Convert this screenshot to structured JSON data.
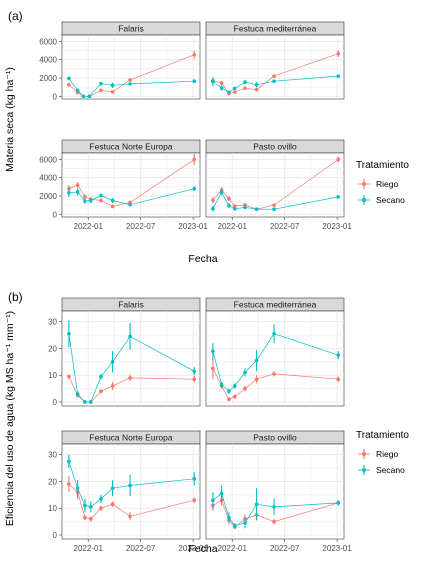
{
  "colors": {
    "riego": "#F8766D",
    "secano": "#00BFC4"
  },
  "chart_data": [
    {
      "type": "line",
      "label": "(a)",
      "xlabel": "Fecha",
      "ylabel": "Materia seca (kg ha⁻¹)",
      "ylim": [
        -300,
        6700
      ],
      "yticks": [
        0,
        2000,
        4000,
        6000
      ],
      "xticks": [
        "2022-01",
        "2022-07",
        "2023-01"
      ],
      "legend": {
        "title": "Tratamiento",
        "entries": [
          "Riego",
          "Secano"
        ],
        "placement": "right"
      },
      "panels": [
        {
          "title": "Falaris",
          "series": [
            {
              "name": "Riego",
              "x": [
                "2021-10-25",
                "2021-11-25",
                "2021-12-15",
                "2022-01-05",
                "2022-02-15",
                "2022-03-25",
                "2022-05-25",
                "2023-01-05"
              ],
              "y": [
                1250,
                420,
                0,
                0,
                650,
                480,
                1780,
                4550
              ],
              "err": [
                150,
                150,
                50,
                50,
                120,
                120,
                150,
                450
              ]
            },
            {
              "name": "Secano",
              "x": [
                "2021-10-25",
                "2021-11-25",
                "2021-12-15",
                "2022-01-05",
                "2022-02-15",
                "2022-03-25",
                "2022-05-25",
                "2023-01-05"
              ],
              "y": [
                1950,
                650,
                0,
                0,
                1380,
                1200,
                1350,
                1650
              ],
              "err": [
                150,
                150,
                50,
                50,
                120,
                300,
                150,
                150
              ]
            }
          ]
        },
        {
          "title": "Festuca mediterránea",
          "series": [
            {
              "name": "Riego",
              "x": [
                "2021-10-25",
                "2021-11-25",
                "2021-12-20",
                "2022-01-10",
                "2022-02-15",
                "2022-03-25",
                "2022-05-25",
                "2023-01-05"
              ],
              "y": [
                1700,
                1450,
                300,
                450,
                880,
                720,
                2200,
                4650
              ],
              "err": [
                300,
                200,
                100,
                100,
                150,
                100,
                200,
                350
              ]
            },
            {
              "name": "Secano",
              "x": [
                "2021-10-25",
                "2021-11-25",
                "2021-12-20",
                "2022-01-10",
                "2022-02-15",
                "2022-03-25",
                "2022-05-25",
                "2023-01-05"
              ],
              "y": [
                1600,
                900,
                450,
                850,
                1550,
                1250,
                1650,
                2200
              ],
              "err": [
                500,
                300,
                150,
                150,
                150,
                300,
                150,
                150
              ]
            }
          ]
        },
        {
          "title": "Festuca Norte Europa",
          "series": [
            {
              "name": "Riego",
              "x": [
                "2021-10-25",
                "2021-11-25",
                "2021-12-20",
                "2022-01-10",
                "2022-02-15",
                "2022-03-25",
                "2022-05-25",
                "2023-01-05"
              ],
              "y": [
                2800,
                3200,
                1900,
                1650,
                1500,
                850,
                1300,
                6000
              ],
              "err": [
                400,
                300,
                300,
                200,
                200,
                150,
                200,
                600
              ]
            },
            {
              "name": "Secano",
              "x": [
                "2021-10-25",
                "2021-11-25",
                "2021-12-20",
                "2022-01-10",
                "2022-02-15",
                "2022-03-25",
                "2022-05-25",
                "2023-01-05"
              ],
              "y": [
                2350,
                2450,
                1450,
                1500,
                2050,
                1500,
                1050,
                2800
              ],
              "err": [
                450,
                400,
                300,
                300,
                200,
                300,
                150,
                250
              ]
            }
          ]
        },
        {
          "title": "Pasto ovillo",
          "series": [
            {
              "name": "Riego",
              "x": [
                "2021-10-25",
                "2021-11-25",
                "2021-12-20",
                "2022-01-10",
                "2022-02-15",
                "2022-03-25",
                "2022-05-25",
                "2023-01-05"
              ],
              "y": [
                1550,
                2650,
                1700,
                900,
                1000,
                550,
                1000,
                6000
              ],
              "err": [
                300,
                300,
                250,
                150,
                150,
                100,
                150,
                300
              ]
            },
            {
              "name": "Secano",
              "x": [
                "2021-10-25",
                "2021-11-25",
                "2021-12-20",
                "2022-01-10",
                "2022-02-15",
                "2022-03-25",
                "2022-05-25",
                "2023-01-05"
              ],
              "y": [
                600,
                2400,
                950,
                600,
                750,
                550,
                550,
                1900
              ],
              "err": [
                300,
                300,
                250,
                150,
                150,
                100,
                150,
                150
              ]
            }
          ]
        }
      ]
    },
    {
      "type": "line",
      "label": "(b)",
      "xlabel": "Fecha",
      "ylabel": "Eficiencia del uso de agua (kg MS ha⁻¹ mm⁻¹)",
      "ylim": [
        -1.5,
        34
      ],
      "yticks": [
        0,
        10,
        20,
        30
      ],
      "xticks": [
        "2022-01",
        "2022-07",
        "2023-01"
      ],
      "legend": {
        "title": "Tratamiento",
        "entries": [
          "Riego",
          "Secano"
        ],
        "placement": "right"
      },
      "panels": [
        {
          "title": "Falaris",
          "series": [
            {
              "name": "Riego",
              "x": [
                "2021-10-25",
                "2021-11-25",
                "2021-12-20",
                "2022-01-10",
                "2022-02-15",
                "2022-03-25",
                "2022-05-25",
                "2023-01-05"
              ],
              "y": [
                9.5,
                2.5,
                0,
                0,
                4,
                6,
                9,
                8.5
              ],
              "err": [
                0.8,
                0.8,
                0.3,
                0.3,
                0.8,
                1.5,
                1.2,
                1.2
              ]
            },
            {
              "name": "Secano",
              "x": [
                "2021-10-25",
                "2021-11-25",
                "2021-12-20",
                "2022-01-10",
                "2022-02-15",
                "2022-03-25",
                "2022-05-25",
                "2023-01-05"
              ],
              "y": [
                25.5,
                3,
                0,
                0,
                9.5,
                15,
                24.5,
                11.5
              ],
              "err": [
                5,
                1,
                0.3,
                0.3,
                1,
                4,
                5,
                1.5
              ]
            }
          ]
        },
        {
          "title": "Festuca mediterránea",
          "series": [
            {
              "name": "Riego",
              "x": [
                "2021-10-25",
                "2021-11-25",
                "2021-12-20",
                "2022-01-10",
                "2022-02-15",
                "2022-03-25",
                "2022-05-25",
                "2023-01-05"
              ],
              "y": [
                12.5,
                6,
                1,
                2,
                5,
                8.5,
                10.5,
                8.5
              ],
              "err": [
                4,
                1,
                0.8,
                0.8,
                1,
                1.5,
                1,
                1
              ]
            },
            {
              "name": "Secano",
              "x": [
                "2021-10-25",
                "2021-11-25",
                "2021-12-20",
                "2022-01-10",
                "2022-02-15",
                "2022-03-25",
                "2022-05-25",
                "2023-01-05"
              ],
              "y": [
                19,
                6.5,
                4,
                6,
                11,
                15.5,
                25.5,
                17.5
              ],
              "err": [
                3,
                1,
                1,
                1,
                1.5,
                4,
                3.5,
                1.5
              ]
            }
          ]
        },
        {
          "title": "Festuca Norte Europa",
          "series": [
            {
              "name": "Riego",
              "x": [
                "2021-10-25",
                "2021-11-25",
                "2021-12-20",
                "2022-01-10",
                "2022-02-15",
                "2022-03-25",
                "2022-05-25",
                "2023-01-05"
              ],
              "y": [
                19,
                16,
                6.5,
                6,
                10,
                11.5,
                7,
                13
              ],
              "err": [
                3,
                2.5,
                1,
                1,
                1,
                1,
                1.5,
                1
              ]
            },
            {
              "name": "Secano",
              "x": [
                "2021-10-25",
                "2021-11-25",
                "2021-12-20",
                "2022-01-10",
                "2022-02-15",
                "2022-03-25",
                "2022-05-25",
                "2023-01-05"
              ],
              "y": [
                27.5,
                17.5,
                11,
                10.5,
                13.5,
                17.5,
                18.5,
                21
              ],
              "err": [
                2.5,
                3,
                2.5,
                2,
                1.5,
                3,
                4,
                2.5
              ]
            }
          ]
        },
        {
          "title": "Pasto ovillo",
          "series": [
            {
              "name": "Riego",
              "x": [
                "2021-10-25",
                "2021-11-25",
                "2021-12-20",
                "2022-01-10",
                "2022-02-15",
                "2022-03-25",
                "2022-05-25",
                "2023-01-05"
              ],
              "y": [
                11,
                13,
                5.5,
                3,
                6,
                7.5,
                5,
                12
              ],
              "err": [
                2,
                2,
                1.5,
                0.8,
                1.5,
                2,
                1,
                1
              ]
            },
            {
              "name": "Secano",
              "x": [
                "2021-10-25",
                "2021-11-25",
                "2021-12-20",
                "2022-01-10",
                "2022-02-15",
                "2022-03-25",
                "2022-05-25",
                "2023-01-05"
              ],
              "y": [
                13,
                15.5,
                6.5,
                3.5,
                4.5,
                11.5,
                10.5,
                12
              ],
              "err": [
                3,
                3,
                2,
                1,
                2,
                6,
                3,
                1
              ]
            }
          ]
        }
      ]
    }
  ]
}
